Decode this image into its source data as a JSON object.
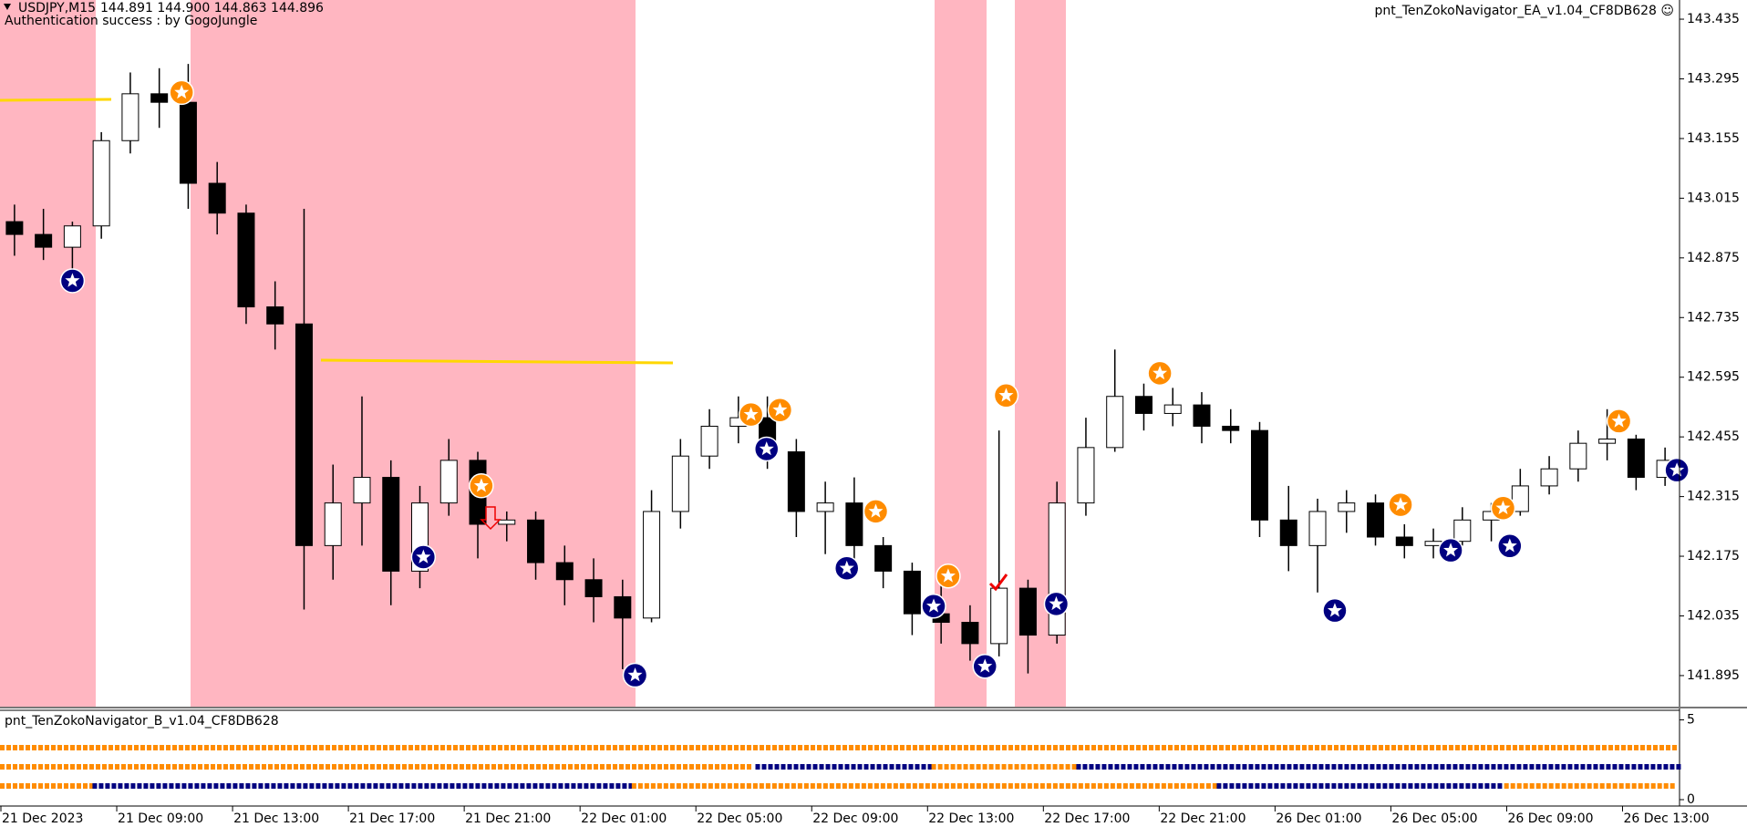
{
  "header": {
    "symbol": "USDJPY,M15",
    "quote": "144.891 144.900 144.863 144.896",
    "status": "Authentication success : by GogoJungle",
    "expert": "pnt_TenZokoNavigator_EA_v1.04_CF8DB628 ☺"
  },
  "chart_data": {
    "type": "candlestick",
    "categories": [
      "21 Dec 2023",
      null,
      null,
      null,
      "21 Dec 09:00",
      null,
      null,
      null,
      "21 Dec 13:00",
      null,
      null,
      null,
      "21 Dec 17:00",
      null,
      null,
      null,
      "21 Dec 21:00",
      null,
      null,
      null,
      "22 Dec 01:00",
      null,
      null,
      null,
      "22 Dec 05:00",
      null,
      null,
      null,
      "22 Dec 09:00",
      null,
      null,
      null,
      "22 Dec 13:00",
      null,
      null,
      null,
      "22 Dec 17:00",
      null,
      null,
      null,
      "22 Dec 21:00",
      null,
      null,
      null,
      "26 Dec 01:00",
      null,
      null,
      null,
      "26 Dec 05:00",
      null,
      null,
      null,
      "26 Dec 09:00",
      null,
      null,
      null,
      "26 Dec 13:00",
      null
    ],
    "open": [
      142.96,
      142.93,
      142.9,
      142.95,
      143.15,
      143.26,
      143.24,
      143.05,
      142.98,
      142.76,
      142.72,
      142.2,
      142.3,
      142.36,
      142.14,
      142.3,
      142.4,
      142.25,
      142.26,
      142.16,
      142.12,
      142.08,
      142.03,
      142.28,
      142.41,
      142.48,
      142.5,
      142.42,
      142.28,
      142.3,
      142.2,
      142.14,
      142.04,
      142.02,
      141.97,
      142.1,
      141.99,
      142.3,
      142.43,
      142.55,
      142.51,
      142.53,
      142.48,
      142.47,
      142.26,
      142.2,
      142.28,
      142.3,
      142.22,
      142.2,
      142.21,
      142.26,
      142.28,
      142.34,
      142.38,
      142.44,
      142.45,
      142.36
    ],
    "high": [
      143.0,
      142.99,
      142.96,
      143.17,
      143.31,
      143.32,
      143.33,
      143.1,
      143.0,
      142.82,
      142.99,
      142.39,
      142.55,
      142.4,
      142.34,
      142.45,
      142.42,
      142.28,
      142.28,
      142.2,
      142.17,
      142.12,
      142.33,
      142.45,
      142.52,
      142.55,
      142.55,
      142.45,
      142.35,
      142.36,
      142.22,
      142.16,
      142.13,
      142.06,
      142.47,
      142.12,
      142.35,
      142.5,
      142.66,
      142.58,
      142.57,
      142.56,
      142.52,
      142.49,
      142.34,
      142.31,
      142.33,
      142.32,
      142.25,
      142.24,
      142.29,
      142.3,
      142.38,
      142.41,
      142.47,
      142.52,
      142.46,
      142.43
    ],
    "low": [
      142.88,
      142.87,
      142.84,
      142.92,
      143.12,
      143.18,
      142.99,
      142.93,
      142.72,
      142.66,
      142.05,
      142.12,
      142.2,
      142.06,
      142.1,
      142.27,
      142.17,
      142.21,
      142.12,
      142.06,
      142.02,
      141.91,
      142.02,
      142.24,
      142.38,
      142.44,
      142.38,
      142.22,
      142.18,
      142.15,
      142.1,
      141.99,
      141.97,
      141.93,
      141.94,
      141.9,
      141.97,
      142.27,
      142.42,
      142.47,
      142.48,
      142.44,
      142.44,
      142.22,
      142.14,
      142.09,
      142.23,
      142.2,
      142.17,
      142.17,
      142.2,
      142.21,
      142.27,
      142.32,
      142.35,
      142.4,
      142.33,
      142.34
    ],
    "close": [
      142.93,
      142.9,
      142.95,
      143.15,
      143.26,
      143.24,
      143.05,
      142.98,
      142.76,
      142.72,
      142.2,
      142.3,
      142.36,
      142.14,
      142.3,
      142.4,
      142.25,
      142.26,
      142.16,
      142.12,
      142.08,
      142.03,
      142.28,
      142.41,
      142.48,
      142.5,
      142.42,
      142.28,
      142.3,
      142.2,
      142.14,
      142.04,
      142.02,
      141.97,
      142.1,
      141.99,
      142.3,
      142.43,
      142.55,
      142.51,
      142.53,
      142.48,
      142.47,
      142.26,
      142.2,
      142.28,
      142.3,
      142.22,
      142.2,
      142.21,
      142.26,
      142.28,
      142.34,
      142.38,
      142.44,
      142.45,
      142.36,
      142.4
    ],
    "ylim": [
      141.82,
      143.48
    ],
    "yticks": [
      143.435,
      143.295,
      143.155,
      143.015,
      142.875,
      142.735,
      142.595,
      142.455,
      142.315,
      142.175,
      142.035,
      141.895
    ],
    "up_color": "#ffffff",
    "down_color": "#000000"
  },
  "indicator": {
    "name": "pnt_TenZokoNavigator_B_v1.04_CF8DB628",
    "ylim": [
      -0.4,
      5.6
    ],
    "yticks": [
      5,
      0
    ]
  }
}
